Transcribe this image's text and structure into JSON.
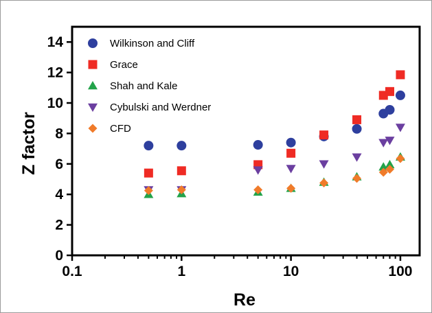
{
  "chart_data": {
    "type": "scatter",
    "xlabel": "Re",
    "ylabel": "Z factor",
    "x_scale": "log",
    "xlim": [
      0.1,
      150
    ],
    "ylim": [
      0,
      15
    ],
    "x_ticks": [
      0.1,
      1,
      10,
      100
    ],
    "x_tick_labels": [
      "0.1",
      "1",
      "10",
      "100"
    ],
    "y_ticks": [
      0,
      2,
      4,
      6,
      8,
      10,
      12,
      14
    ],
    "y_tick_labels": [
      "0",
      "2",
      "4",
      "6",
      "8",
      "10",
      "12",
      "14"
    ],
    "grid": false,
    "legend_position": "top-left",
    "series": [
      {
        "name": "Wilkinson and Cliff",
        "marker": "circle",
        "color": "#2e3f9e",
        "points": [
          [
            0.5,
            7.2
          ],
          [
            1,
            7.2
          ],
          [
            5,
            7.25
          ],
          [
            10,
            7.4
          ],
          [
            20,
            7.8
          ],
          [
            40,
            8.3
          ],
          [
            70,
            9.3
          ],
          [
            80,
            9.55
          ],
          [
            100,
            10.5
          ]
        ]
      },
      {
        "name": "Grace",
        "marker": "square",
        "color": "#ef2b24",
        "points": [
          [
            0.5,
            5.4
          ],
          [
            1,
            5.55
          ],
          [
            5,
            5.95
          ],
          [
            10,
            6.7
          ],
          [
            20,
            7.9
          ],
          [
            40,
            8.9
          ],
          [
            70,
            10.5
          ],
          [
            80,
            10.75
          ],
          [
            100,
            11.85
          ]
        ]
      },
      {
        "name": "Shah and Kale",
        "marker": "triangle-up",
        "color": "#23a34a",
        "points": [
          [
            0.5,
            4.0
          ],
          [
            1,
            4.05
          ],
          [
            5,
            4.15
          ],
          [
            10,
            4.4
          ],
          [
            20,
            4.8
          ],
          [
            40,
            5.15
          ],
          [
            70,
            5.8
          ],
          [
            80,
            5.95
          ],
          [
            100,
            6.45
          ]
        ]
      },
      {
        "name": "Cybulski and Werdner",
        "marker": "triangle-down",
        "color": "#6b3fa0",
        "points": [
          [
            0.5,
            4.3
          ],
          [
            1,
            4.3
          ],
          [
            5,
            5.6
          ],
          [
            10,
            5.7
          ],
          [
            20,
            6.0
          ],
          [
            40,
            6.45
          ],
          [
            70,
            7.4
          ],
          [
            80,
            7.55
          ],
          [
            100,
            8.4
          ]
        ]
      },
      {
        "name": "CFD",
        "marker": "diamond",
        "color": "#f07b2a",
        "points": [
          [
            0.5,
            4.25
          ],
          [
            1,
            4.3
          ],
          [
            5,
            4.3
          ],
          [
            10,
            4.4
          ],
          [
            20,
            4.75
          ],
          [
            40,
            5.05
          ],
          [
            70,
            5.45
          ],
          [
            80,
            5.65
          ],
          [
            100,
            6.35
          ]
        ]
      }
    ]
  }
}
